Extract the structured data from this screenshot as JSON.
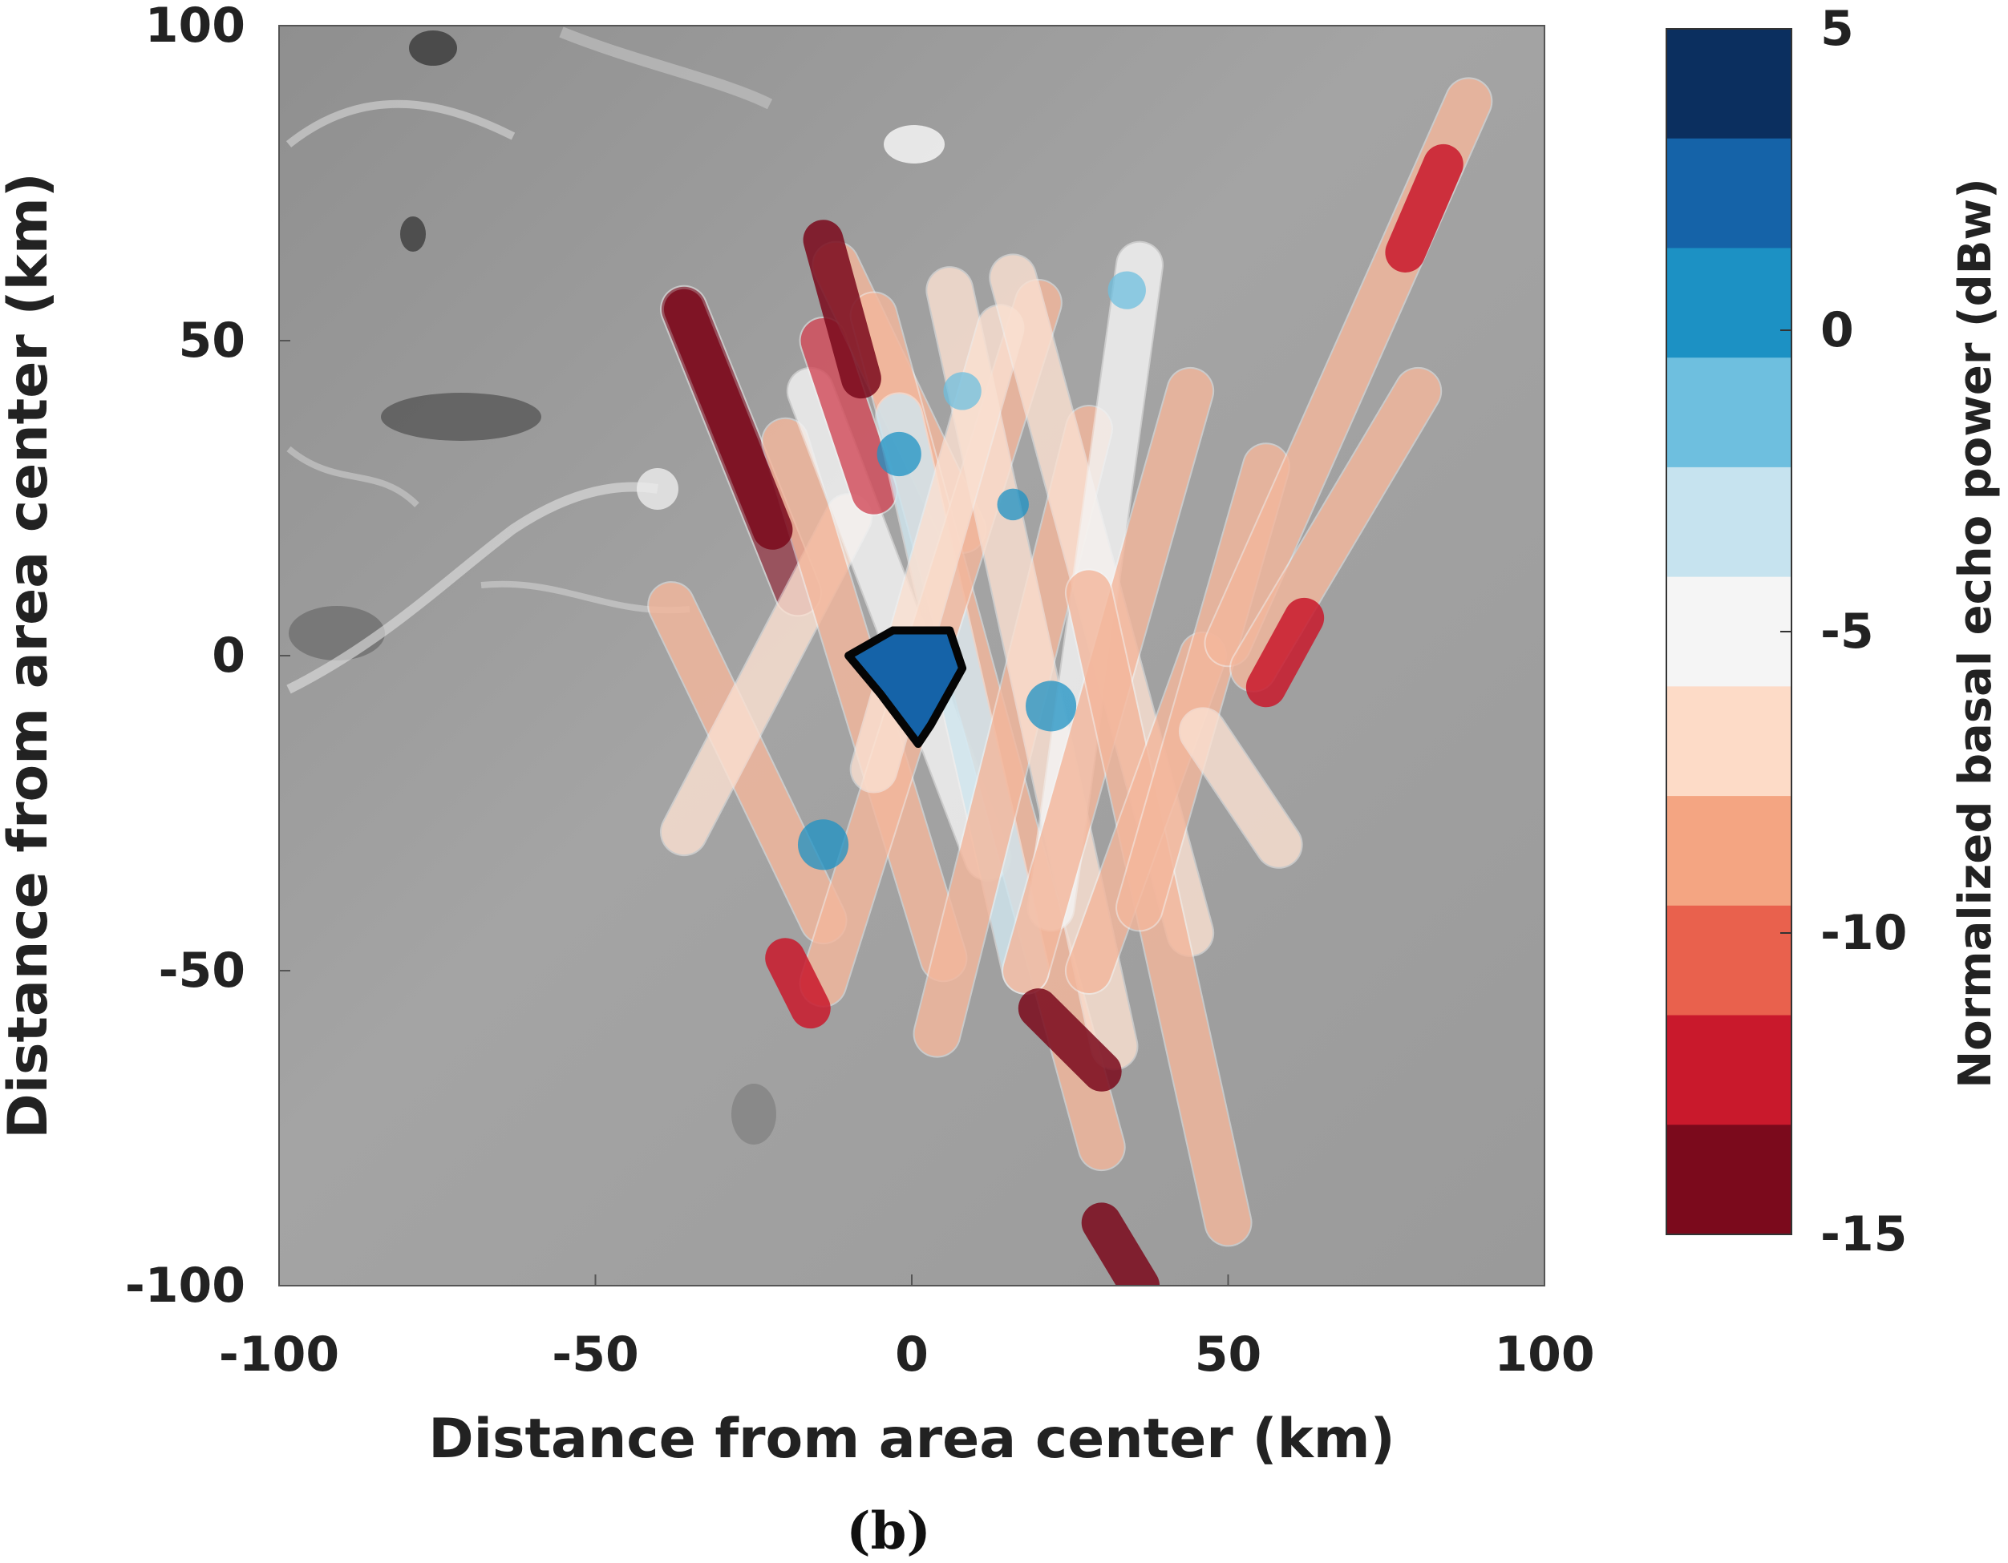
{
  "panel_label": "(b)",
  "chart_data": {
    "type": "heatmap",
    "xlabel": "Distance from area center (km)",
    "ylabel": "Distance from area center (km)",
    "xlim": [
      -100,
      100
    ],
    "ylim": [
      -100,
      100
    ],
    "x_ticks": [
      {
        "value": -100,
        "label": "-100"
      },
      {
        "value": -50,
        "label": "-50"
      },
      {
        "value": 0,
        "label": "0"
      },
      {
        "value": 50,
        "label": "50"
      },
      {
        "value": 100,
        "label": "100"
      }
    ],
    "y_ticks": [
      {
        "value": 100,
        "label": "100"
      },
      {
        "value": 50,
        "label": "50"
      },
      {
        "value": 0,
        "label": "0"
      },
      {
        "value": -50,
        "label": "-50"
      },
      {
        "value": -100,
        "label": "-100"
      }
    ],
    "grid": false,
    "colorbar": {
      "label": "Normalized basal echo power (dBw)",
      "range": [
        -15,
        5
      ],
      "ticks": [
        {
          "value": 5,
          "label": "5"
        },
        {
          "value": 0,
          "label": "0"
        },
        {
          "value": -5,
          "label": "-5"
        },
        {
          "value": -10,
          "label": "-10"
        },
        {
          "value": -15,
          "label": "-15"
        }
      ],
      "colors_top_to_bottom": [
        "#0b2f5f",
        "#1563a8",
        "#1c91c4",
        "#6ebfdf",
        "#c6e3ef",
        "#f5f5f5",
        "#fddbc7",
        "#f4a582",
        "#e9614d",
        "#c9192c",
        "#7b0a1c"
      ]
    },
    "tracks": [
      {
        "from": [
          -36,
          55
        ],
        "to": [
          -18,
          10
        ],
        "value": -13.5
      },
      {
        "from": [
          -38,
          8
        ],
        "to": [
          -14,
          -42
        ],
        "value": -9
      },
      {
        "from": [
          -36,
          -28
        ],
        "to": [
          -10,
          22
        ],
        "value": -6
      },
      {
        "from": [
          -20,
          34
        ],
        "to": [
          5,
          -48
        ],
        "value": -8
      },
      {
        "from": [
          -16,
          42
        ],
        "to": [
          12,
          -32
        ],
        "value": -5
      },
      {
        "from": [
          -14,
          50
        ],
        "to": [
          -6,
          26
        ],
        "value": -12
      },
      {
        "from": [
          -12,
          62
        ],
        "to": [
          8,
          20
        ],
        "value": -9
      },
      {
        "from": [
          -6,
          54
        ],
        "to": [
          30,
          -78
        ],
        "value": -8
      },
      {
        "from": [
          -2,
          38
        ],
        "to": [
          18,
          -50
        ],
        "value": -4
      },
      {
        "from": [
          -14,
          -52
        ],
        "to": [
          20,
          56
        ],
        "value": -9
      },
      {
        "from": [
          4,
          -60
        ],
        "to": [
          28,
          36
        ],
        "value": -8
      },
      {
        "from": [
          6,
          58
        ],
        "to": [
          32,
          -62
        ],
        "value": -6
      },
      {
        "from": [
          -6,
          -18
        ],
        "to": [
          14,
          52
        ],
        "value": -6
      },
      {
        "from": [
          16,
          60
        ],
        "to": [
          44,
          -44
        ],
        "value": -7
      },
      {
        "from": [
          22,
          -40
        ],
        "to": [
          36,
          62
        ],
        "value": -5
      },
      {
        "from": [
          18,
          -50
        ],
        "to": [
          44,
          42
        ],
        "value": -9
      },
      {
        "from": [
          28,
          10
        ],
        "to": [
          50,
          -90
        ],
        "value": -9
      },
      {
        "from": [
          28,
          -50
        ],
        "to": [
          46,
          0
        ],
        "value": -8
      },
      {
        "from": [
          36,
          -40
        ],
        "to": [
          56,
          30
        ],
        "value": -8
      },
      {
        "from": [
          50,
          2
        ],
        "to": [
          88,
          88
        ],
        "value": -8
      },
      {
        "from": [
          54,
          -2
        ],
        "to": [
          80,
          42
        ],
        "value": -9
      },
      {
        "from": [
          46,
          -12
        ],
        "to": [
          58,
          -30
        ],
        "value": -6
      }
    ],
    "tracks_overlay": [
      {
        "from": [
          -36,
          55
        ],
        "to": [
          -22,
          20
        ],
        "value": -14
      },
      {
        "from": [
          -14,
          66
        ],
        "to": [
          -8,
          44
        ],
        "value": -14
      },
      {
        "from": [
          56,
          -5
        ],
        "to": [
          62,
          6
        ],
        "value": -12
      },
      {
        "from": [
          20,
          -56
        ],
        "to": [
          30,
          -66
        ],
        "value": -14
      },
      {
        "from": [
          30,
          -90
        ],
        "to": [
          36,
          -100
        ],
        "value": -14
      },
      {
        "from": [
          78,
          64
        ],
        "to": [
          84,
          78
        ],
        "value": -12
      },
      {
        "from": [
          -20,
          -48
        ],
        "to": [
          -16,
          -56
        ],
        "value": -13
      }
    ],
    "blue_patches": [
      {
        "center": [
          -14,
          -30
        ],
        "radius": 4,
        "value": 1
      },
      {
        "center": [
          -2,
          32
        ],
        "radius": 3.5,
        "value": 1
      },
      {
        "center": [
          22,
          -8
        ],
        "radius": 4,
        "value": 0
      },
      {
        "center": [
          34,
          58
        ],
        "radius": 3,
        "value": -2
      },
      {
        "center": [
          16,
          24
        ],
        "radius": 2.5,
        "value": 0
      },
      {
        "center": [
          8,
          42
        ],
        "radius": 3,
        "value": -2
      }
    ],
    "lake_outline": [
      [
        -10,
        0
      ],
      [
        -3,
        4
      ],
      [
        6,
        4
      ],
      [
        8,
        -2
      ],
      [
        3,
        -11
      ],
      [
        1,
        -14
      ],
      [
        -5,
        -6
      ]
    ],
    "lake_value": 2
  }
}
